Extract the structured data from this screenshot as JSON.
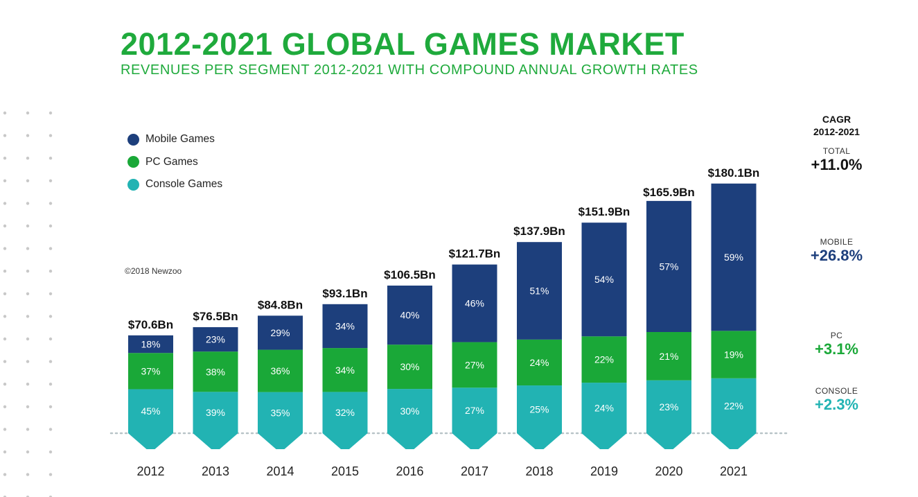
{
  "header": {
    "title": "2012-2021 GLOBAL GAMES MARKET",
    "subtitle": "REVENUES PER SEGMENT 2012-2021 WITH COMPOUND ANNUAL GROWTH RATES"
  },
  "copyright": "©2018 Newzoo",
  "colors": {
    "mobile": "#1d3f7c",
    "pc": "#1aa838",
    "console": "#22b3b3",
    "title": "#1faa3c",
    "dots": "#c8c8c8"
  },
  "legend": [
    {
      "label": "Mobile Games",
      "color": "#1d3f7c"
    },
    {
      "label": "PC Games",
      "color": "#1aa838"
    },
    {
      "label": "Console Games",
      "color": "#22b3b3"
    }
  ],
  "cagr": {
    "heading_line1": "CAGR",
    "heading_line2": "2012-2021",
    "items": [
      {
        "label": "TOTAL",
        "value": "+11.0%",
        "color": "#111111"
      },
      {
        "label": "MOBILE",
        "value": "+26.8%",
        "color": "#1d3f7c"
      },
      {
        "label": "PC",
        "value": "+3.1%",
        "color": "#1aa838"
      },
      {
        "label": "CONSOLE",
        "value": "+2.3%",
        "color": "#22b3b3"
      }
    ]
  },
  "chart_data": {
    "type": "bar",
    "stacked": true,
    "categories": [
      "2012",
      "2013",
      "2014",
      "2015",
      "2016",
      "2017",
      "2018",
      "2019",
      "2020",
      "2021"
    ],
    "totals": [
      70.6,
      76.5,
      84.8,
      93.1,
      106.5,
      121.7,
      137.9,
      151.9,
      165.9,
      180.1
    ],
    "total_labels": [
      "$70.6Bn",
      "$76.5Bn",
      "$84.8Bn",
      "$93.1Bn",
      "$106.5Bn",
      "$121.7Bn",
      "$137.9Bn",
      "$151.9Bn",
      "$165.9Bn",
      "$180.1Bn"
    ],
    "unit": "$Bn",
    "series": [
      {
        "name": "Console Games",
        "key": "console",
        "percents": [
          45,
          39,
          35,
          32,
          30,
          27,
          25,
          24,
          23,
          22
        ]
      },
      {
        "name": "PC Games",
        "key": "pc",
        "percents": [
          37,
          38,
          36,
          34,
          30,
          27,
          24,
          22,
          21,
          19
        ]
      },
      {
        "name": "Mobile Games",
        "key": "mobile",
        "percents": [
          18,
          23,
          29,
          34,
          40,
          46,
          51,
          54,
          57,
          59
        ]
      }
    ],
    "legend_position": "top-left",
    "grid": false
  }
}
